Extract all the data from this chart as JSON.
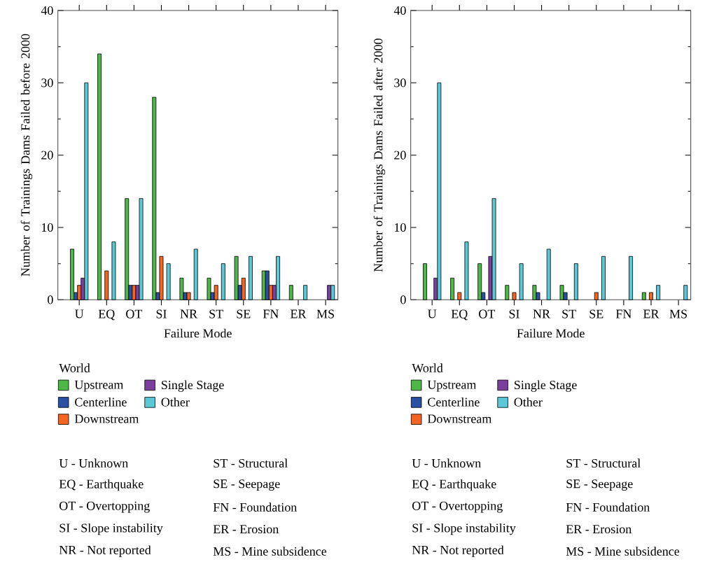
{
  "chart_data": [
    {
      "type": "bar",
      "xlabel": "Failure Mode",
      "ylabel": "Number of Trainings Dams Failed before 2000",
      "categories": [
        "U",
        "EQ",
        "OT",
        "SI",
        "NR",
        "ST",
        "SE",
        "FN",
        "ER",
        "MS"
      ],
      "series": [
        {
          "name": "Upstream",
          "color": "#4db848",
          "values": [
            7,
            34,
            14,
            28,
            3,
            3,
            6,
            4,
            2,
            0
          ]
        },
        {
          "name": "Centerline",
          "color": "#2a4fa3",
          "values": [
            1,
            0,
            2,
            1,
            1,
            1,
            2,
            4,
            0,
            0
          ]
        },
        {
          "name": "Downstream",
          "color": "#f26522",
          "values": [
            2,
            4,
            2,
            6,
            1,
            2,
            3,
            2,
            0,
            0
          ]
        },
        {
          "name": "Single Stage",
          "color": "#7b3f9e",
          "values": [
            3,
            0,
            2,
            0,
            0,
            0,
            0,
            2,
            0,
            2
          ]
        },
        {
          "name": "Other",
          "color": "#5bc8d8",
          "values": [
            30,
            8,
            14,
            5,
            7,
            5,
            6,
            6,
            2,
            2
          ]
        }
      ],
      "ylim": [
        0,
        40
      ],
      "yticks": [
        0,
        10,
        20,
        30,
        40
      ],
      "legend": "bottom",
      "legend_title": "World",
      "annotations": [
        "U - Unknown",
        "EQ - Earthquake",
        "OT - Overtopping",
        "SI - Slope instability",
        "NR - Not reported",
        "ST - Structural",
        "SE - Seepage",
        "FN - Foundation",
        "ER - Erosion",
        "MS - Mine subsidence"
      ]
    },
    {
      "type": "bar",
      "xlabel": "Failure Mode",
      "ylabel": "Number of Trainings Dams Failed after 2000",
      "categories": [
        "U",
        "EQ",
        "OT",
        "SI",
        "NR",
        "ST",
        "SE",
        "FN",
        "ER",
        "MS"
      ],
      "series": [
        {
          "name": "Upstream",
          "color": "#4db848",
          "values": [
            5,
            3,
            5,
            2,
            2,
            2,
            0,
            0,
            1,
            0
          ]
        },
        {
          "name": "Centerline",
          "color": "#2a4fa3",
          "values": [
            0,
            0,
            1,
            0,
            1,
            1,
            0,
            0,
            0,
            0
          ]
        },
        {
          "name": "Downstream",
          "color": "#f26522",
          "values": [
            0,
            1,
            0,
            1,
            0,
            0,
            1,
            0,
            1,
            0
          ]
        },
        {
          "name": "Single Stage",
          "color": "#7b3f9e",
          "values": [
            3,
            0,
            6,
            0,
            0,
            0,
            0,
            0,
            0,
            0
          ]
        },
        {
          "name": "Other",
          "color": "#5bc8d8",
          "values": [
            30,
            8,
            14,
            5,
            7,
            5,
            6,
            6,
            2,
            2
          ]
        }
      ],
      "ylim": [
        0,
        40
      ],
      "yticks": [
        0,
        10,
        20,
        30,
        40
      ],
      "legend": "bottom",
      "legend_title": "World",
      "annotations": [
        "U - Unknown",
        "EQ - Earthquake",
        "OT - Overtopping",
        "SI - Slope instability",
        "NR - Not reported",
        "ST - Structural",
        "SE - Seepage",
        "FN - Foundation",
        "ER - Erosion",
        "MS - Mine subsidence"
      ]
    }
  ]
}
